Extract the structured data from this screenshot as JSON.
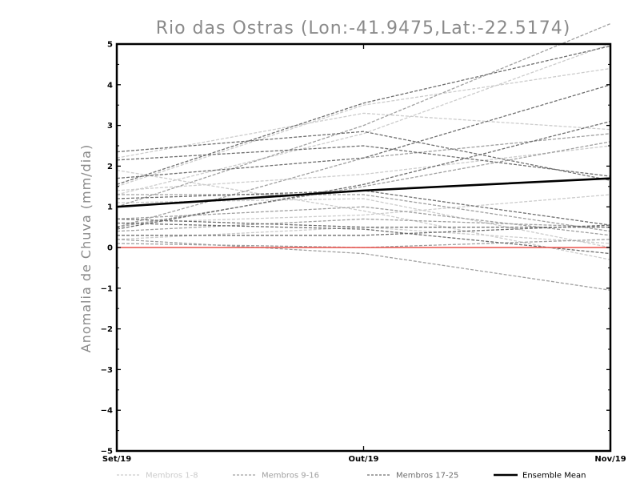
{
  "chart_data": {
    "type": "line",
    "title": "Rio das Ostras (Lon:-41.9475,Lat:-22.5174)",
    "xlabel": "",
    "ylabel": "Anomalia de Chuva (mm/dia)",
    "categories": [
      "Set/19",
      "Out/19",
      "Nov/19"
    ],
    "ylim": [
      -5,
      5
    ],
    "yticks": [
      -5,
      -4,
      -3,
      -2,
      -1,
      0,
      1,
      2,
      3,
      4,
      5
    ],
    "grid": false,
    "legend_position": "bottom",
    "reference_line": {
      "y": 0,
      "color": "#e8504a"
    },
    "groups": [
      {
        "name": "Membros 1-8",
        "color": "#cccccc",
        "dashed": true,
        "series": [
          {
            "values": [
              1.3,
              2.8,
              5.0
            ]
          },
          {
            "values": [
              1.5,
              3.5,
              4.4
            ]
          },
          {
            "values": [
              2.2,
              3.3,
              2.9
            ]
          },
          {
            "values": [
              1.4,
              1.8,
              2.5
            ]
          },
          {
            "values": [
              0.6,
              0.8,
              1.3
            ]
          },
          {
            "values": [
              1.9,
              0.9,
              -0.3
            ]
          },
          {
            "values": [
              1.1,
              1.2,
              0.0
            ]
          },
          {
            "values": [
              0.2,
              0.5,
              0.1
            ]
          }
        ]
      },
      {
        "name": "Membros 9-16",
        "color": "#a0a0a0",
        "dashed": true,
        "series": [
          {
            "values": [
              1.0,
              3.0,
              5.5
            ]
          },
          {
            "values": [
              0.5,
              2.2,
              2.8
            ]
          },
          {
            "values": [
              0.5,
              1.5,
              2.6
            ]
          },
          {
            "values": [
              0.7,
              1.0,
              0.3
            ]
          },
          {
            "values": [
              0.4,
              0.7,
              0.5
            ]
          },
          {
            "values": [
              0.2,
              -0.15,
              -1.05
            ]
          },
          {
            "values": [
              0.1,
              0.0,
              0.2
            ]
          },
          {
            "values": [
              1.3,
              1.3,
              0.4
            ]
          }
        ]
      },
      {
        "name": "Membros 17-25",
        "color": "#6e6e6e",
        "dashed": true,
        "series": [
          {
            "values": [
              1.55,
              3.55,
              4.95
            ]
          },
          {
            "values": [
              1.7,
              2.2,
              4.0
            ]
          },
          {
            "values": [
              0.45,
              1.55,
              3.1
            ]
          },
          {
            "values": [
              2.35,
              2.85,
              1.65
            ]
          },
          {
            "values": [
              2.15,
              2.5,
              1.75
            ]
          },
          {
            "values": [
              0.7,
              0.5,
              0.5
            ]
          },
          {
            "values": [
              0.3,
              0.3,
              0.55
            ]
          },
          {
            "values": [
              1.2,
              1.4,
              0.55
            ]
          },
          {
            "values": [
              0.6,
              0.45,
              -0.15
            ]
          }
        ]
      }
    ],
    "ensemble_mean": {
      "name": "Ensemble Mean",
      "color": "#000000",
      "values": [
        1.0,
        1.4,
        1.7
      ]
    }
  }
}
